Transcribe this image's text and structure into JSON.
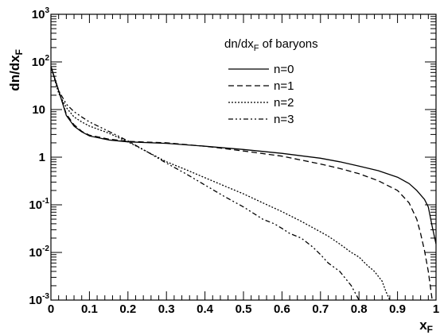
{
  "chart_data": {
    "type": "line",
    "title": "",
    "xlabel": "x",
    "xlabel_sub": "F",
    "ylabel": "dn/dx",
    "ylabel_sub": "F",
    "xlim": [
      0,
      1
    ],
    "ylim": [
      0.001,
      1000
    ],
    "y_scale": "log",
    "grid": false,
    "legend_position": "top-right",
    "legend_title": "dn/dx",
    "legend_title_sub": "F",
    "legend_title_suffix": " of baryons",
    "x_ticks": [
      "0",
      "0.1",
      "0.2",
      "0.3",
      "0.4",
      "0.5",
      "0.6",
      "0.7",
      "0.8",
      "0.9",
      "1"
    ],
    "y_ticks": [
      {
        "base": "10",
        "exp": "-3"
      },
      {
        "base": "10",
        "exp": "-2"
      },
      {
        "base": "10",
        "exp": "-1"
      },
      {
        "base": "1",
        "exp": ""
      },
      {
        "base": "10",
        "exp": ""
      },
      {
        "base": "10",
        "exp": "2"
      },
      {
        "base": "10",
        "exp": "3"
      }
    ],
    "series": [
      {
        "name": "n=0",
        "dash": "",
        "points": [
          [
            0.0,
            80
          ],
          [
            0.02,
            25
          ],
          [
            0.04,
            7.5
          ],
          [
            0.06,
            4.5
          ],
          [
            0.08,
            3.4
          ],
          [
            0.1,
            2.8
          ],
          [
            0.15,
            2.3
          ],
          [
            0.2,
            2.1
          ],
          [
            0.3,
            1.95
          ],
          [
            0.4,
            1.7
          ],
          [
            0.5,
            1.45
          ],
          [
            0.6,
            1.2
          ],
          [
            0.7,
            0.95
          ],
          [
            0.75,
            0.8
          ],
          [
            0.8,
            0.65
          ],
          [
            0.85,
            0.52
          ],
          [
            0.9,
            0.38
          ],
          [
            0.93,
            0.28
          ],
          [
            0.95,
            0.2
          ],
          [
            0.97,
            0.13
          ],
          [
            0.98,
            0.09
          ],
          [
            0.99,
            0.035
          ],
          [
            1.0,
            0.015
          ]
        ]
      },
      {
        "name": "n=1",
        "dash": "7,4",
        "points": [
          [
            0.0,
            80
          ],
          [
            0.02,
            25
          ],
          [
            0.04,
            8
          ],
          [
            0.06,
            4.8
          ],
          [
            0.08,
            3.5
          ],
          [
            0.1,
            2.9
          ],
          [
            0.15,
            2.4
          ],
          [
            0.2,
            2.15
          ],
          [
            0.3,
            2.0
          ],
          [
            0.4,
            1.7
          ],
          [
            0.5,
            1.35
          ],
          [
            0.6,
            1.05
          ],
          [
            0.7,
            0.72
          ],
          [
            0.75,
            0.58
          ],
          [
            0.8,
            0.45
          ],
          [
            0.85,
            0.32
          ],
          [
            0.9,
            0.2
          ],
          [
            0.93,
            0.11
          ],
          [
            0.95,
            0.05
          ],
          [
            0.96,
            0.025
          ],
          [
            0.97,
            0.011
          ],
          [
            0.98,
            0.004
          ],
          [
            0.99,
            0.001
          ]
        ]
      },
      {
        "name": "n=2",
        "dash": "2,2",
        "points": [
          [
            0.0,
            80
          ],
          [
            0.02,
            22
          ],
          [
            0.04,
            11
          ],
          [
            0.06,
            7
          ],
          [
            0.08,
            5.5
          ],
          [
            0.1,
            4.5
          ],
          [
            0.15,
            3.2
          ],
          [
            0.2,
            2.1
          ],
          [
            0.25,
            1.3
          ],
          [
            0.3,
            0.8
          ],
          [
            0.35,
            0.55
          ],
          [
            0.4,
            0.37
          ],
          [
            0.45,
            0.25
          ],
          [
            0.5,
            0.17
          ],
          [
            0.55,
            0.11
          ],
          [
            0.6,
            0.072
          ],
          [
            0.65,
            0.045
          ],
          [
            0.7,
            0.027
          ],
          [
            0.72,
            0.022
          ],
          [
            0.75,
            0.015
          ],
          [
            0.78,
            0.01
          ],
          [
            0.8,
            0.008
          ],
          [
            0.82,
            0.0055
          ],
          [
            0.84,
            0.004
          ],
          [
            0.86,
            0.0025
          ],
          [
            0.87,
            0.0015
          ],
          [
            0.88,
            0.001
          ]
        ]
      },
      {
        "name": "n=3",
        "dash": "6,3,2,3,2,3",
        "points": [
          [
            0.0,
            80
          ],
          [
            0.02,
            25
          ],
          [
            0.04,
            13
          ],
          [
            0.06,
            9
          ],
          [
            0.08,
            7
          ],
          [
            0.1,
            5.5
          ],
          [
            0.15,
            3.5
          ],
          [
            0.2,
            2.2
          ],
          [
            0.25,
            1.3
          ],
          [
            0.3,
            0.75
          ],
          [
            0.35,
            0.45
          ],
          [
            0.4,
            0.26
          ],
          [
            0.45,
            0.15
          ],
          [
            0.5,
            0.09
          ],
          [
            0.55,
            0.05
          ],
          [
            0.58,
            0.04
          ],
          [
            0.6,
            0.032
          ],
          [
            0.62,
            0.025
          ],
          [
            0.65,
            0.02
          ],
          [
            0.68,
            0.013
          ],
          [
            0.7,
            0.009
          ],
          [
            0.72,
            0.006
          ],
          [
            0.75,
            0.004
          ],
          [
            0.78,
            0.002
          ],
          [
            0.8,
            0.001
          ]
        ]
      }
    ]
  }
}
